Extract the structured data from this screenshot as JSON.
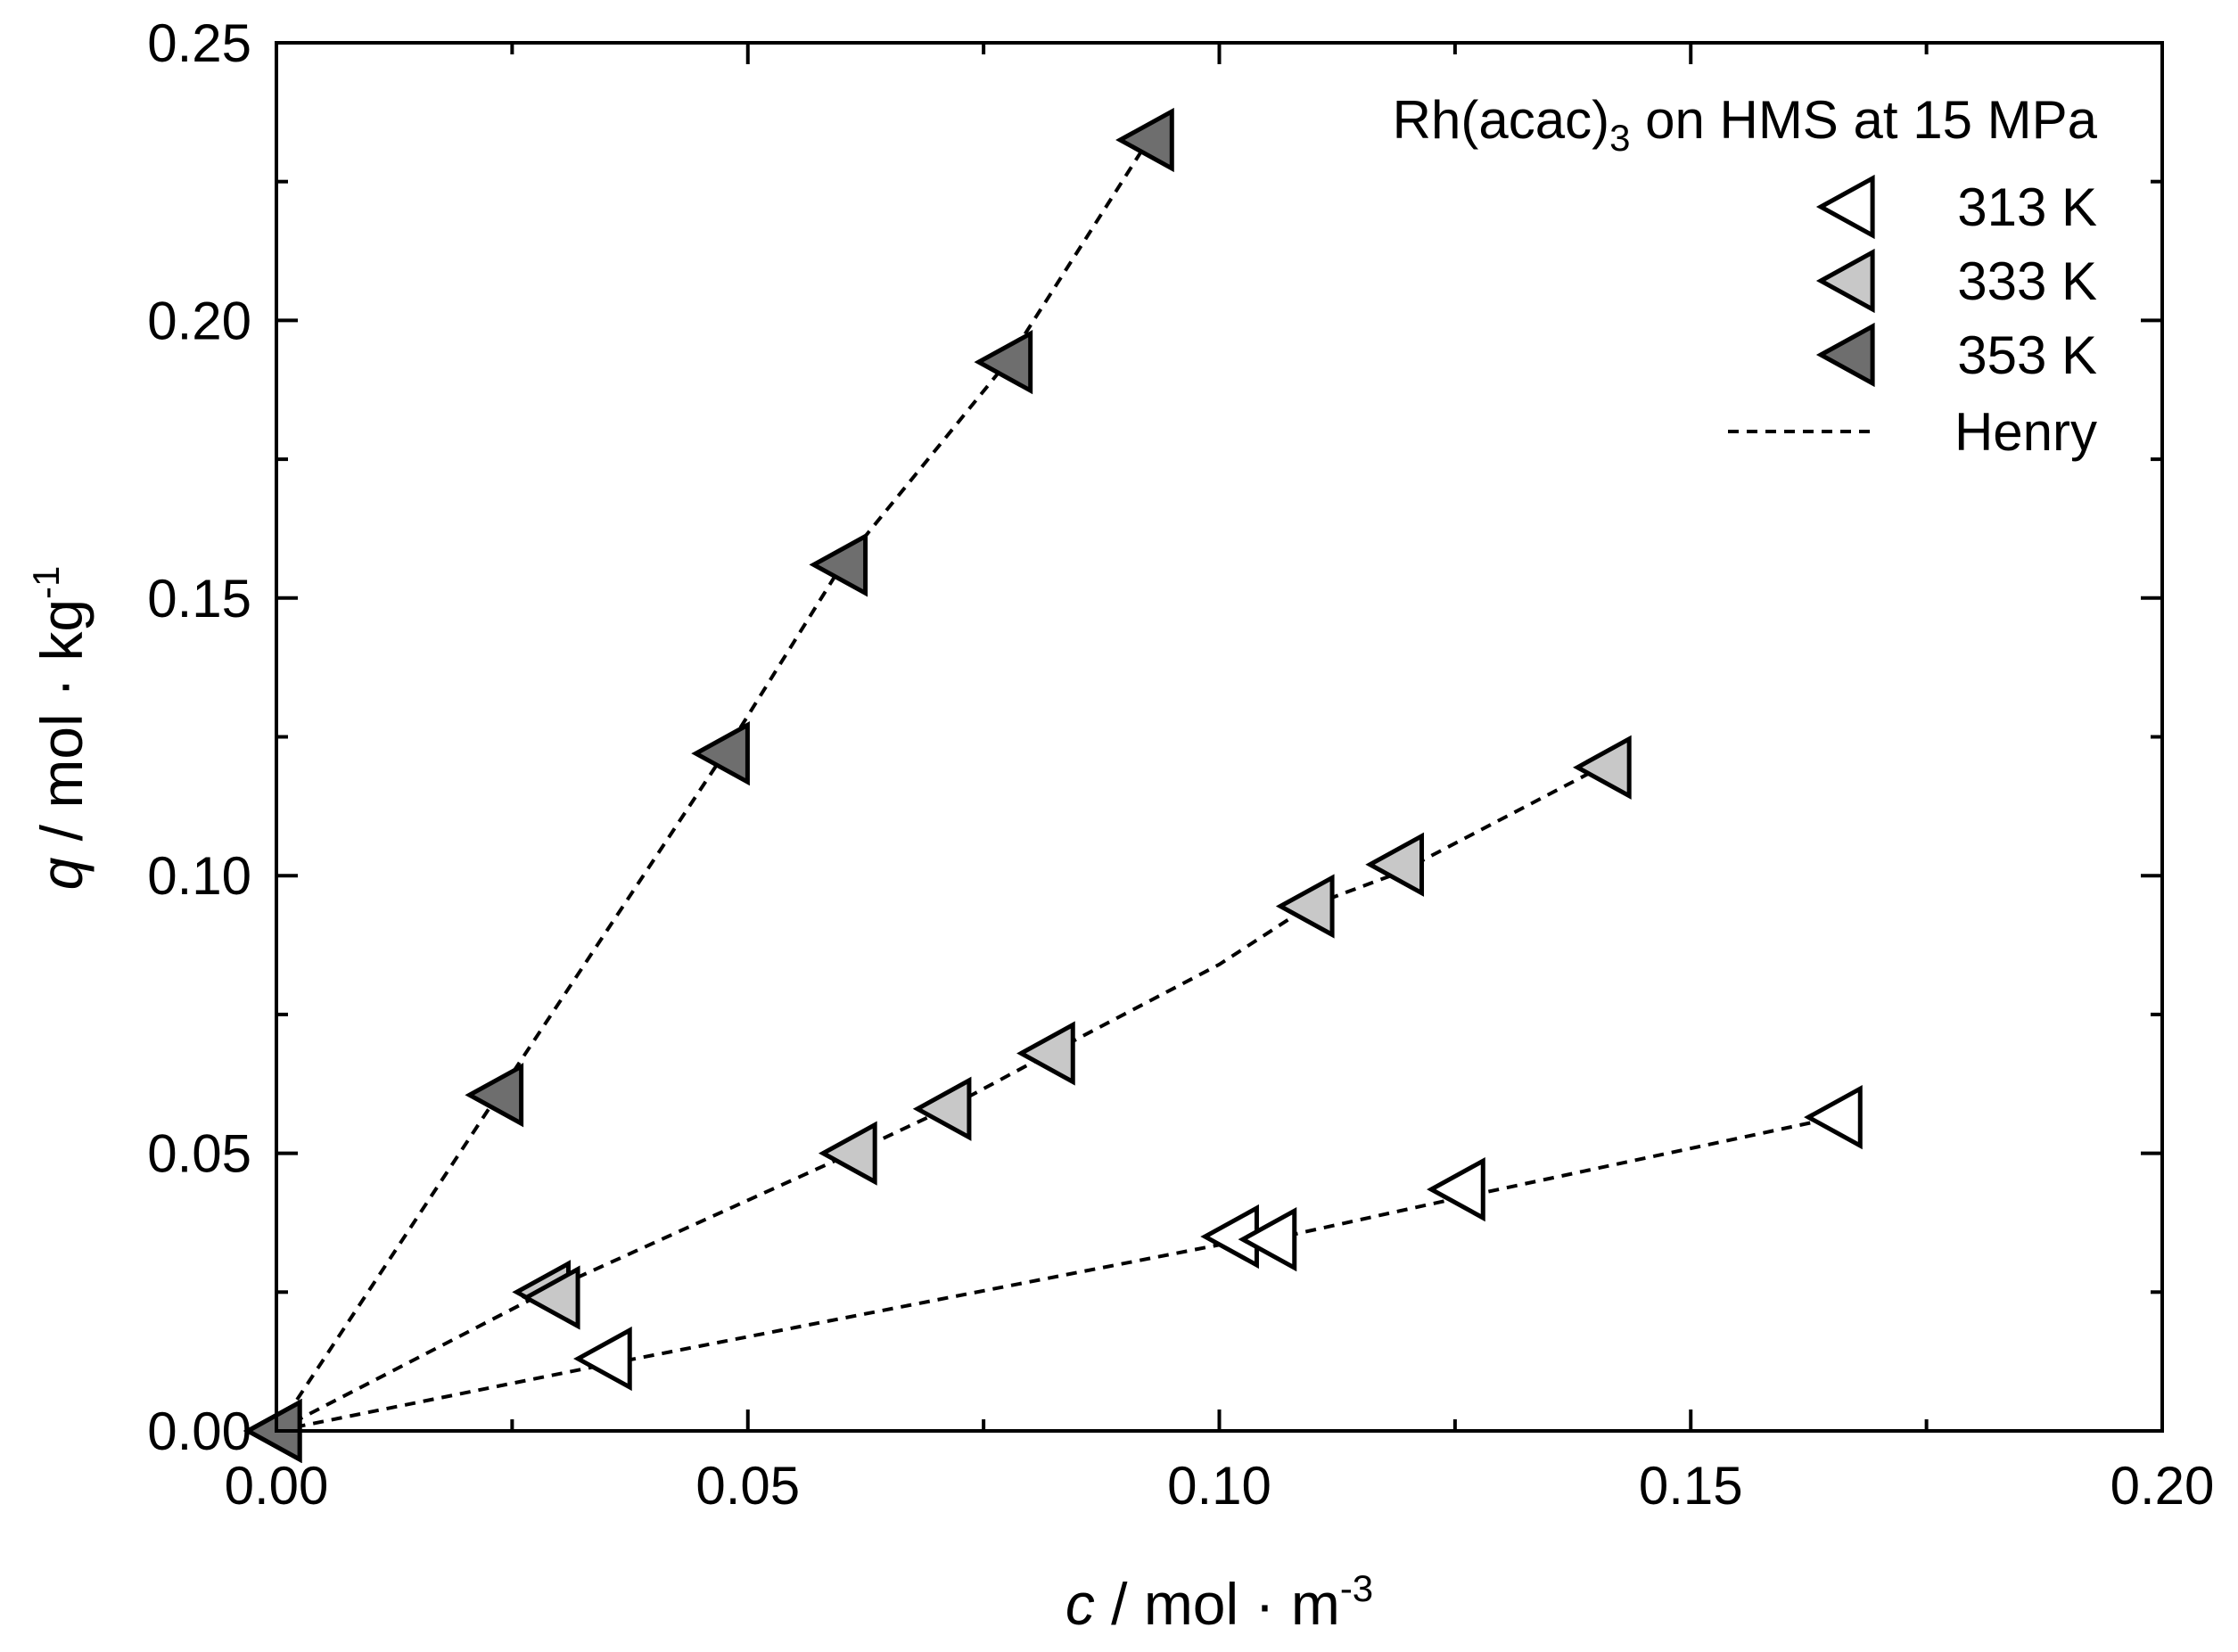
{
  "chart_data": {
    "type": "scatter",
    "legend_title": "Rh(acac)",
    "legend_title_sub": "3",
    "legend_title_suffix": " on HMS at 15 MPa",
    "xlabel": {
      "var": "c",
      "unit": " / mol · m",
      "sup": "-3"
    },
    "ylabel": {
      "var": "q",
      "unit": " / mol · kg",
      "sup": "-1"
    },
    "xlim": [
      0,
      0.2
    ],
    "ylim": [
      0,
      0.25
    ],
    "xticks": [
      0,
      0.05,
      0.1,
      0.15,
      0.2
    ],
    "xtick_labels": [
      "0.00",
      "0.05",
      "0.10",
      "0.15",
      "0.20"
    ],
    "yticks": [
      0,
      0.05,
      0.1,
      0.15,
      0.2,
      0.25
    ],
    "ytick_labels": [
      "0.00",
      "0.05",
      "0.10",
      "0.15",
      "0.20",
      "0.25"
    ],
    "legend_position": "top-right",
    "grid": false,
    "series": [
      {
        "name": "313 K",
        "fill": "#ffffff",
        "points": [
          [
            0.0,
            0.0
          ],
          [
            0.035,
            0.013
          ],
          [
            0.1015,
            0.035
          ],
          [
            0.1055,
            0.0345
          ],
          [
            0.1255,
            0.0435
          ],
          [
            0.1655,
            0.0565
          ]
        ],
        "fit": [
          [
            0.0,
            0.0
          ],
          [
            0.035,
            0.012
          ],
          [
            0.1015,
            0.034
          ],
          [
            0.1055,
            0.0345
          ],
          [
            0.1255,
            0.042
          ],
          [
            0.1655,
            0.0565
          ]
        ]
      },
      {
        "name": "333 K",
        "fill": "#c8c8c8",
        "points": [
          [
            0.0,
            0.0
          ],
          [
            0.0285,
            0.025
          ],
          [
            0.0295,
            0.024
          ],
          [
            0.061,
            0.05
          ],
          [
            0.071,
            0.058
          ],
          [
            0.082,
            0.068
          ],
          [
            0.1095,
            0.0945
          ],
          [
            0.119,
            0.102
          ],
          [
            0.141,
            0.1195
          ]
        ],
        "fit": [
          [
            0.0,
            0.0
          ],
          [
            0.0285,
            0.025
          ],
          [
            0.061,
            0.05
          ],
          [
            0.071,
            0.058
          ],
          [
            0.082,
            0.068
          ],
          [
            0.1,
            0.084
          ],
          [
            0.1095,
            0.0945
          ],
          [
            0.119,
            0.1005
          ],
          [
            0.141,
            0.12
          ]
        ]
      },
      {
        "name": "353 K",
        "fill": "#6e6e6e",
        "points": [
          [
            0.0,
            0.0
          ],
          [
            0.0235,
            0.0605
          ],
          [
            0.0475,
            0.122
          ],
          [
            0.06,
            0.156
          ],
          [
            0.0775,
            0.1925
          ],
          [
            0.0925,
            0.2325
          ]
        ],
        "fit": [
          [
            0.0,
            0.0
          ],
          [
            0.0235,
            0.0605
          ],
          [
            0.0475,
            0.122
          ],
          [
            0.06,
            0.156
          ],
          [
            0.0775,
            0.1925
          ],
          [
            0.0925,
            0.2325
          ]
        ]
      }
    ],
    "fit_label": "Henry"
  }
}
